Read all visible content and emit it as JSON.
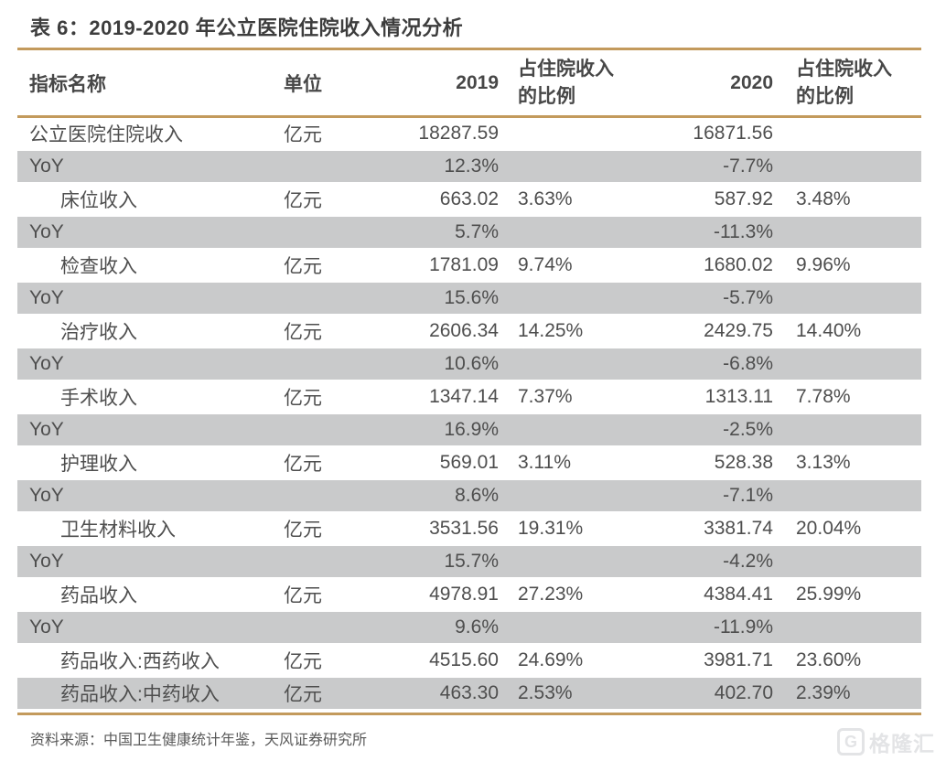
{
  "table": {
    "title": "表 6：2019-2020 年公立医院住院收入情况分析",
    "header": {
      "indicator": "指标名称",
      "unit": "单位",
      "y2019": "2019",
      "ratio2019_line1": "占住院收入",
      "ratio2019_line2": "的比例",
      "y2020": "2020",
      "ratio2020_line1": "占住院收入",
      "ratio2020_line2": "的比例"
    },
    "rows": [
      {
        "name": "公立医院住院收入",
        "unit": "亿元",
        "v2019": "18287.59",
        "r2019": "",
        "v2020": "16871.56",
        "r2020": "",
        "indent": false,
        "shaded": false
      },
      {
        "name": "YoY",
        "unit": "",
        "v2019": "12.3%",
        "r2019": "",
        "v2020": "-7.7%",
        "r2020": "",
        "indent": false,
        "shaded": true
      },
      {
        "name": "床位收入",
        "unit": "亿元",
        "v2019": "663.02",
        "r2019": "3.63%",
        "v2020": "587.92",
        "r2020": "3.48%",
        "indent": true,
        "shaded": false
      },
      {
        "name": "YoY",
        "unit": "",
        "v2019": "5.7%",
        "r2019": "",
        "v2020": "-11.3%",
        "r2020": "",
        "indent": false,
        "shaded": true
      },
      {
        "name": "检查收入",
        "unit": "亿元",
        "v2019": "1781.09",
        "r2019": "9.74%",
        "v2020": "1680.02",
        "r2020": "9.96%",
        "indent": true,
        "shaded": false
      },
      {
        "name": "YoY",
        "unit": "",
        "v2019": "15.6%",
        "r2019": "",
        "v2020": "-5.7%",
        "r2020": "",
        "indent": false,
        "shaded": true
      },
      {
        "name": "治疗收入",
        "unit": "亿元",
        "v2019": "2606.34",
        "r2019": "14.25%",
        "v2020": "2429.75",
        "r2020": "14.40%",
        "indent": true,
        "shaded": false
      },
      {
        "name": "YoY",
        "unit": "",
        "v2019": "10.6%",
        "r2019": "",
        "v2020": "-6.8%",
        "r2020": "",
        "indent": false,
        "shaded": true
      },
      {
        "name": "手术收入",
        "unit": "亿元",
        "v2019": "1347.14",
        "r2019": "7.37%",
        "v2020": "1313.11",
        "r2020": "7.78%",
        "indent": true,
        "shaded": false
      },
      {
        "name": "YoY",
        "unit": "",
        "v2019": "16.9%",
        "r2019": "",
        "v2020": "-2.5%",
        "r2020": "",
        "indent": false,
        "shaded": true
      },
      {
        "name": "护理收入",
        "unit": "亿元",
        "v2019": "569.01",
        "r2019": "3.11%",
        "v2020": "528.38",
        "r2020": "3.13%",
        "indent": true,
        "shaded": false
      },
      {
        "name": "YoY",
        "unit": "",
        "v2019": "8.6%",
        "r2019": "",
        "v2020": "-7.1%",
        "r2020": "",
        "indent": false,
        "shaded": true
      },
      {
        "name": "卫生材料收入",
        "unit": "亿元",
        "v2019": "3531.56",
        "r2019": "19.31%",
        "v2020": "3381.74",
        "r2020": "20.04%",
        "indent": true,
        "shaded": false
      },
      {
        "name": "YoY",
        "unit": "",
        "v2019": "15.7%",
        "r2019": "",
        "v2020": "-4.2%",
        "r2020": "",
        "indent": false,
        "shaded": true
      },
      {
        "name": "药品收入",
        "unit": "亿元",
        "v2019": "4978.91",
        "r2019": "27.23%",
        "v2020": "4384.41",
        "r2020": "25.99%",
        "indent": true,
        "shaded": false
      },
      {
        "name": "YoY",
        "unit": "",
        "v2019": "9.6%",
        "r2019": "",
        "v2020": "-11.9%",
        "r2020": "",
        "indent": false,
        "shaded": true
      },
      {
        "name": "药品收入:西药收入",
        "unit": "亿元",
        "v2019": "4515.60",
        "r2019": "24.69%",
        "v2020": "3981.71",
        "r2020": "23.60%",
        "indent": true,
        "shaded": false
      },
      {
        "name": "药品收入:中药收入",
        "unit": "亿元",
        "v2019": "463.30",
        "r2019": "2.53%",
        "v2020": "402.70",
        "r2020": "2.39%",
        "indent": true,
        "shaded": true
      }
    ],
    "source_note": "资料来源：中国卫生健康统计年鉴，天风证券研究所"
  },
  "watermark": {
    "logo_letter": "G",
    "text": "格隆汇"
  },
  "colors": {
    "accent_rule": "#c39a5c",
    "shaded_row": "#c9cacb",
    "title_text": "#3d3d3d",
    "body_text": "#4e4e4e",
    "watermark": "#e3e4e6"
  }
}
